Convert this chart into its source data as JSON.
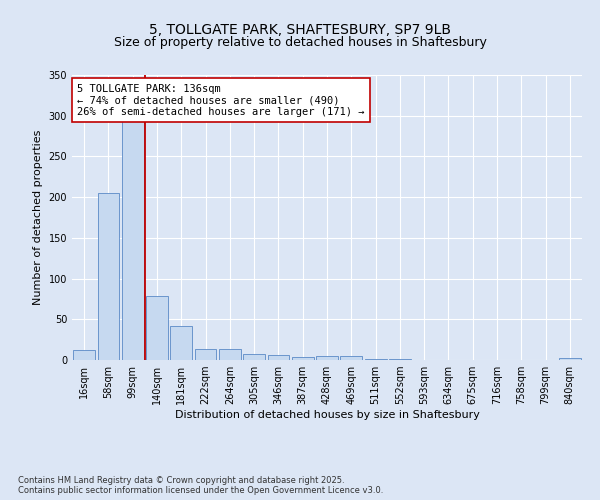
{
  "title_line1": "5, TOLLGATE PARK, SHAFTESBURY, SP7 9LB",
  "title_line2": "Size of property relative to detached houses in Shaftesbury",
  "xlabel": "Distribution of detached houses by size in Shaftesbury",
  "ylabel": "Number of detached properties",
  "categories": [
    "16sqm",
    "58sqm",
    "99sqm",
    "140sqm",
    "181sqm",
    "222sqm",
    "264sqm",
    "305sqm",
    "346sqm",
    "387sqm",
    "428sqm",
    "469sqm",
    "511sqm",
    "552sqm",
    "593sqm",
    "634sqm",
    "675sqm",
    "716sqm",
    "758sqm",
    "799sqm",
    "840sqm"
  ],
  "values": [
    12,
    205,
    295,
    78,
    42,
    13,
    13,
    7,
    6,
    4,
    5,
    5,
    1,
    1,
    0,
    0,
    0,
    0,
    0,
    0,
    2
  ],
  "bar_color": "#c6d9f0",
  "bar_edge_color": "#5a8ac6",
  "vline_x_index": 2.5,
  "vline_color": "#c00000",
  "annotation_text": "5 TOLLGATE PARK: 136sqm\n← 74% of detached houses are smaller (490)\n26% of semi-detached houses are larger (171) →",
  "annotation_box_color": "#ffffff",
  "annotation_box_edge": "#c00000",
  "ylim": [
    0,
    350
  ],
  "yticks": [
    0,
    50,
    100,
    150,
    200,
    250,
    300,
    350
  ],
  "bg_color": "#dce6f5",
  "plot_bg_color": "#dce6f5",
  "grid_color": "#ffffff",
  "footer_text": "Contains HM Land Registry data © Crown copyright and database right 2025.\nContains public sector information licensed under the Open Government Licence v3.0.",
  "title_fontsize": 10,
  "subtitle_fontsize": 9,
  "label_fontsize": 8,
  "tick_fontsize": 7,
  "annotation_fontsize": 7.5,
  "footer_fontsize": 6
}
